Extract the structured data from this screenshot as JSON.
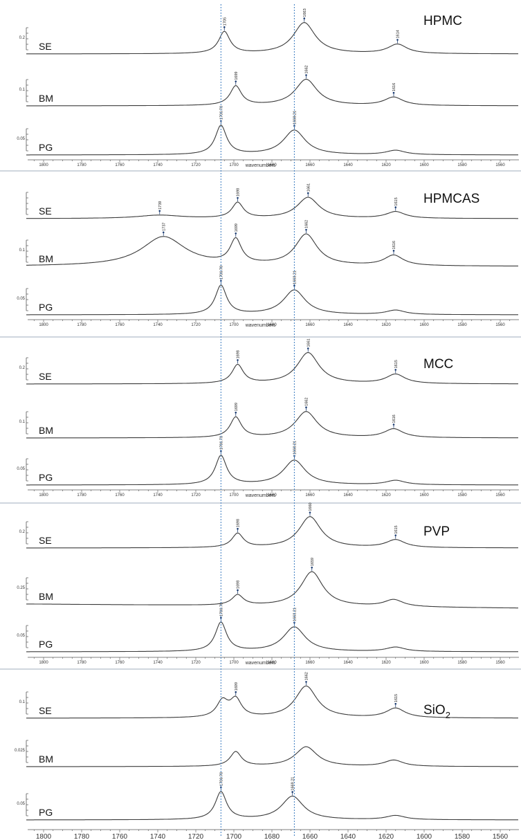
{
  "x_axis": {
    "label": "wavenumbers",
    "range": [
      1810,
      1550
    ],
    "ticks": [
      1800,
      1780,
      1760,
      1740,
      1720,
      1700,
      1680,
      1660,
      1640,
      1620,
      1600,
      1580,
      1560
    ]
  },
  "reference_lines": [
    1706.78,
    1668.21
  ],
  "colors": {
    "trace": "#3a3a3a",
    "reference_line": "#4a86c5",
    "marker": "#1f3f73",
    "axis": "#555555"
  },
  "chart_data": [
    {
      "type": "line",
      "title": "HPMC",
      "xlabel": "wavenumbers",
      "series": [
        {
          "name": "SE",
          "y_tick": "0.2",
          "peaks": [
            {
              "x": 1705,
              "label": "1705",
              "h": 0.7
            },
            {
              "x": 1663,
              "label": "1663",
              "h": 1.0
            },
            {
              "x": 1614,
              "label": "1614",
              "h": 0.3
            }
          ]
        },
        {
          "name": "BM",
          "y_tick": "0.1",
          "peaks": [
            {
              "x": 1699,
              "label": "1699",
              "h": 0.7
            },
            {
              "x": 1662,
              "label": "1662",
              "h": 0.95
            },
            {
              "x": 1616,
              "label": "1616",
              "h": 0.3
            }
          ]
        },
        {
          "name": "PG",
          "y_tick": "0.05",
          "peaks": [
            {
              "x": 1706.78,
              "label": "1706.78",
              "h": 1.0
            },
            {
              "x": 1668.21,
              "label": "1668.21",
              "h": 0.85
            },
            {
              "x": 1615,
              "label": "",
              "h": 0.15
            }
          ]
        }
      ]
    },
    {
      "type": "line",
      "title": "HPMCAS",
      "xlabel": "wavenumbers",
      "series": [
        {
          "name": "SE",
          "y_tick": "",
          "peaks": [
            {
              "x": 1739,
              "label": "1739",
              "h": 0.15
            },
            {
              "x": 1698,
              "label": "1698",
              "h": 0.7
            },
            {
              "x": 1661,
              "label": "1661",
              "h": 0.95
            },
            {
              "x": 1615,
              "label": "1615",
              "h": 0.3
            }
          ]
        },
        {
          "name": "BM",
          "y_tick": "0.1",
          "peaks": [
            {
              "x": 1737,
              "label": "1737",
              "h": 0.85
            },
            {
              "x": 1699,
              "label": "1699",
              "h": 0.7
            },
            {
              "x": 1662,
              "label": "1662",
              "h": 0.9
            },
            {
              "x": 1616,
              "label": "1616",
              "h": 0.3
            }
          ]
        },
        {
          "name": "PG",
          "y_tick": "0.05",
          "peaks": [
            {
              "x": 1706.78,
              "label": "1706.78",
              "h": 1.0
            },
            {
              "x": 1668.21,
              "label": "1668.21",
              "h": 0.85
            },
            {
              "x": 1615,
              "label": "",
              "h": 0.15
            }
          ]
        }
      ]
    },
    {
      "type": "line",
      "title": "MCC",
      "xlabel": "wavenumbers",
      "series": [
        {
          "name": "SE",
          "y_tick": "0.2",
          "peaks": [
            {
              "x": 1698,
              "label": "1698",
              "h": 0.6
            },
            {
              "x": 1661,
              "label": "1661",
              "h": 1.0
            },
            {
              "x": 1615,
              "label": "1615",
              "h": 0.3
            }
          ]
        },
        {
          "name": "BM",
          "y_tick": "0.1",
          "peaks": [
            {
              "x": 1699,
              "label": "1699",
              "h": 0.7
            },
            {
              "x": 1662,
              "label": "1662",
              "h": 0.9
            },
            {
              "x": 1616,
              "label": "1616",
              "h": 0.3
            }
          ]
        },
        {
          "name": "PG",
          "y_tick": "0.05",
          "peaks": [
            {
              "x": 1706.78,
              "label": "1706.78",
              "h": 1.0
            },
            {
              "x": 1668.21,
              "label": "1668.21",
              "h": 0.85
            },
            {
              "x": 1615,
              "label": "",
              "h": 0.15
            }
          ]
        }
      ]
    },
    {
      "type": "line",
      "title": "PVP",
      "xlabel": "wavenumbers",
      "series": [
        {
          "name": "SE",
          "y_tick": "0.2",
          "peaks": [
            {
              "x": 1698,
              "label": "1698",
              "h": 0.45
            },
            {
              "x": 1660,
              "label": "1660",
              "h": 1.0
            },
            {
              "x": 1615,
              "label": "1615",
              "h": 0.25
            }
          ]
        },
        {
          "name": "BM",
          "y_tick": "0.25",
          "peaks": [
            {
              "x": 1698,
              "label": "1698",
              "h": 0.3
            },
            {
              "x": 1659,
              "label": "1659",
              "h": 1.0
            },
            {
              "x": 1616,
              "label": "",
              "h": 0.2
            }
          ]
        },
        {
          "name": "PG",
          "y_tick": "0.05",
          "peaks": [
            {
              "x": 1706.78,
              "label": "1706.78",
              "h": 1.0
            },
            {
              "x": 1668.21,
              "label": "1668.21",
              "h": 0.85
            },
            {
              "x": 1615,
              "label": "",
              "h": 0.15
            }
          ]
        }
      ]
    },
    {
      "type": "line",
      "title": "SiO",
      "title_sub": "2",
      "xlabel": "",
      "series": [
        {
          "name": "SE",
          "y_tick": "0.1",
          "peaks": [
            {
              "x": 1706,
              "label": "",
              "h": 0.5
            },
            {
              "x": 1699,
              "label": "1699",
              "h": 0.55
            },
            {
              "x": 1662,
              "label": "1662",
              "h": 1.0
            },
            {
              "x": 1615,
              "label": "1615",
              "h": 0.3
            }
          ]
        },
        {
          "name": "BM",
          "y_tick": "0.025",
          "peaks": [
            {
              "x": 1699,
              "label": "",
              "h": 0.7
            },
            {
              "x": 1662,
              "label": "",
              "h": 0.95
            },
            {
              "x": 1616,
              "label": "",
              "h": 0.3
            }
          ]
        },
        {
          "name": "PG",
          "y_tick": "0.05",
          "peaks": [
            {
              "x": 1706.78,
              "label": "1706.78",
              "h": 1.0
            },
            {
              "x": 1669.21,
              "label": "1669.21",
              "h": 0.85
            },
            {
              "x": 1615,
              "label": "",
              "h": 0.15
            }
          ]
        }
      ]
    }
  ]
}
